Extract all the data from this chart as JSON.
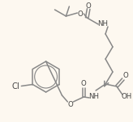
{
  "bg_color": "#fdf8f0",
  "line_color": "#888888",
  "text_color": "#444444",
  "line_width": 1.1,
  "font_size": 6.2,
  "figsize": [
    1.64,
    1.51
  ],
  "dpi": 100,
  "xlim": [
    0,
    164
  ],
  "ylim": [
    151,
    0
  ]
}
